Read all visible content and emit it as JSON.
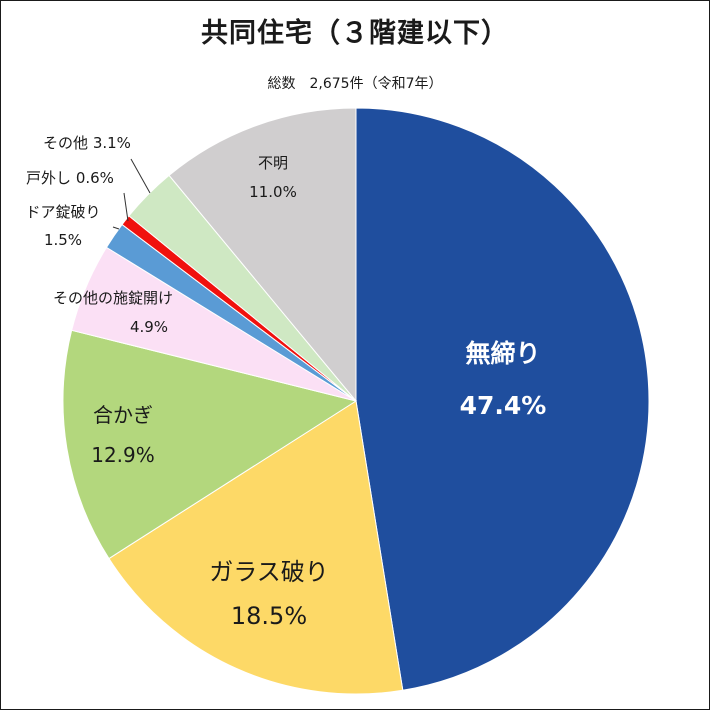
{
  "chart_data": {
    "type": "pie",
    "title": "共同住宅（３階建以下）",
    "subtitle": "総数　2,675件（令和7年）",
    "slices": [
      {
        "label": "無締り",
        "value": 47.4,
        "value_label": "47.4%",
        "color": "#1F4E9E",
        "label_color": "#ffffff"
      },
      {
        "label": "ガラス破り",
        "value": 18.5,
        "value_label": "18.5%",
        "color": "#FDD967",
        "label_color": "#1a1a1a"
      },
      {
        "label": "合かぎ",
        "value": 12.9,
        "value_label": "12.9%",
        "color": "#B3D77D",
        "label_color": "#1a1a1a"
      },
      {
        "label": "その他の施錠開け",
        "value": 4.9,
        "value_label": "4.9%",
        "color": "#FBE0F5",
        "label_color": "#1a1a1a"
      },
      {
        "label": "ドア錠破り",
        "value": 1.5,
        "value_label": "1.5%",
        "color": "#5A9BD5",
        "label_color": "#1a1a1a"
      },
      {
        "label": "戸外し",
        "value": 0.6,
        "value_label": "0.6%",
        "color": "#F0110E",
        "label_color": "#1a1a1a"
      },
      {
        "label": "その他",
        "value": 3.1,
        "value_label": "3.1%",
        "color": "#CFE8C3",
        "label_color": "#1a1a1a"
      },
      {
        "label": "不明",
        "value": 11.0,
        "value_label": "11.0%",
        "color": "#D0CECF",
        "label_color": "#1a1a1a"
      }
    ],
    "start": "top",
    "direction": "clockwise",
    "legend": "none"
  }
}
